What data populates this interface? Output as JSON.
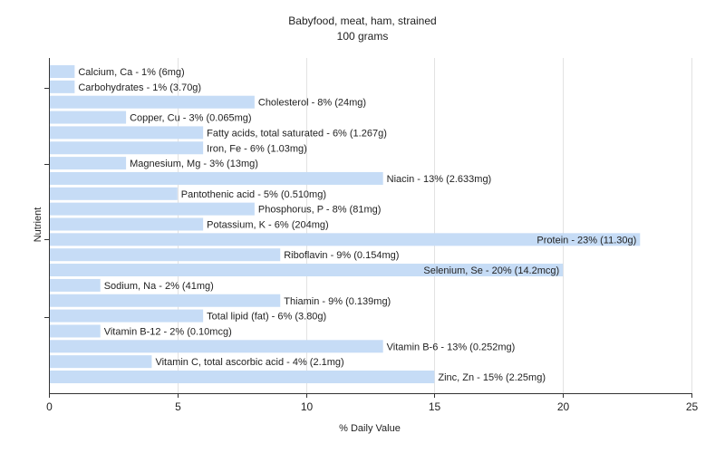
{
  "chart_data": {
    "type": "bar",
    "orientation": "horizontal",
    "title": "Babyfood, meat, ham, strained",
    "subtitle": "100 grams",
    "xlabel": "% Daily Value",
    "ylabel": "Nutrient",
    "xlim": [
      0,
      25
    ],
    "xticks": [
      "0",
      "5",
      "10",
      "15",
      "20",
      "25"
    ],
    "grid": true,
    "bar_color": "#c6dcf6",
    "categories": [
      "Calcium, Ca",
      "Carbohydrates",
      "Cholesterol",
      "Copper, Cu",
      "Fatty acids, total saturated",
      "Iron, Fe",
      "Magnesium, Mg",
      "Niacin",
      "Pantothenic acid",
      "Phosphorus, P",
      "Potassium, K",
      "Protein",
      "Riboflavin",
      "Selenium, Se",
      "Sodium, Na",
      "Thiamin",
      "Total lipid (fat)",
      "Vitamin B-12",
      "Vitamin B-6",
      "Vitamin C, total ascorbic acid",
      "Zinc, Zn"
    ],
    "values": [
      1,
      1,
      8,
      3,
      6,
      6,
      3,
      13,
      5,
      8,
      6,
      23,
      9,
      20,
      2,
      9,
      6,
      2,
      13,
      4,
      15
    ],
    "labels": [
      "Calcium, Ca - 1% (6mg)",
      "Carbohydrates - 1% (3.70g)",
      "Cholesterol - 8% (24mg)",
      "Copper, Cu - 3% (0.065mg)",
      "Fatty acids, total saturated - 6% (1.267g)",
      "Iron, Fe - 6% (1.03mg)",
      "Magnesium, Mg - 3% (13mg)",
      "Niacin - 13% (2.633mg)",
      "Pantothenic acid - 5% (0.510mg)",
      "Phosphorus, P - 8% (81mg)",
      "Potassium, K - 6% (204mg)",
      "Protein - 23% (11.30g)",
      "Riboflavin - 9% (0.154mg)",
      "Selenium, Se - 20% (14.2mcg)",
      "Sodium, Na - 2% (41mg)",
      "Thiamin - 9% (0.139mg)",
      "Total lipid (fat) - 6% (3.80g)",
      "Vitamin B-12 - 2% (0.10mcg)",
      "Vitamin B-6 - 13% (0.252mg)",
      "Vitamin C, total ascorbic acid - 4% (2.1mg)",
      "Zinc, Zn - 15% (2.25mg)"
    ]
  }
}
